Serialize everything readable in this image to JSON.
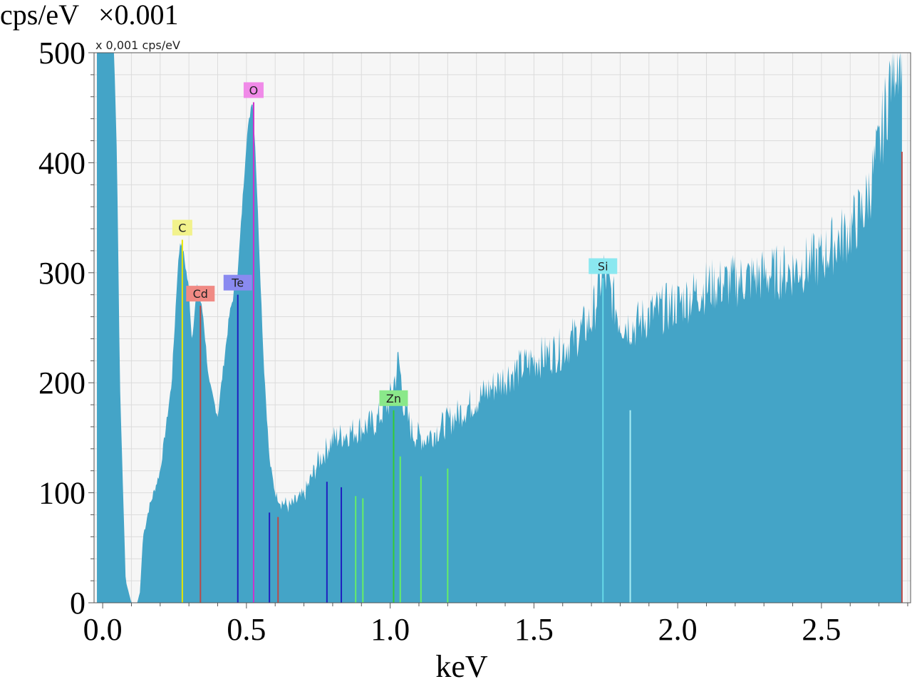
{
  "chart_data": {
    "type": "area",
    "title": "",
    "xlabel": "keV",
    "ylabel": "cps/eV",
    "ylabel_multiplier": "×0.001",
    "panel_note": "x 0,001 cps/eV",
    "xlim": [
      -0.03,
      2.81
    ],
    "ylim": [
      0,
      500
    ],
    "x_ticks": [
      "0.0",
      "0.5",
      "1.0",
      "1.5",
      "2.0",
      "2.5"
    ],
    "y_ticks": [
      "0",
      "100",
      "200",
      "300",
      "400",
      "500"
    ],
    "x_tick_values": [
      0.0,
      0.5,
      1.0,
      1.5,
      2.0,
      2.5
    ],
    "y_tick_values": [
      0,
      100,
      200,
      300,
      400,
      500
    ],
    "grid": true,
    "fill_color": "#44a4c7",
    "spectrum": {
      "x": [
        -0.02,
        0.0,
        0.04,
        0.05,
        0.06,
        0.08,
        0.1,
        0.12,
        0.13,
        0.14,
        0.16,
        0.2,
        0.24,
        0.26,
        0.27,
        0.28,
        0.3,
        0.31,
        0.33,
        0.35,
        0.37,
        0.4,
        0.44,
        0.47,
        0.5,
        0.52,
        0.53,
        0.56,
        0.58,
        0.6,
        0.62,
        0.65,
        0.7,
        0.75,
        0.8,
        0.85,
        0.9,
        0.95,
        1.0,
        1.03,
        1.05,
        1.08,
        1.12,
        1.2,
        1.3,
        1.4,
        1.5,
        1.6,
        1.7,
        1.74,
        1.76,
        1.8,
        1.85,
        1.9,
        2.0,
        2.1,
        2.2,
        2.3,
        2.4,
        2.5,
        2.55,
        2.6,
        2.65,
        2.7,
        2.75,
        2.78
      ],
      "y": [
        500,
        500,
        500,
        400,
        200,
        20,
        0,
        0,
        10,
        60,
        85,
        120,
        200,
        300,
        330,
        320,
        285,
        240,
        290,
        260,
        200,
        170,
        260,
        300,
        420,
        460,
        420,
        220,
        130,
        100,
        90,
        85,
        95,
        125,
        145,
        150,
        155,
        160,
        180,
        215,
        170,
        150,
        145,
        160,
        180,
        200,
        215,
        225,
        250,
        295,
        280,
        250,
        245,
        255,
        265,
        280,
        285,
        290,
        295,
        305,
        320,
        330,
        350,
        400,
        480,
        500
      ]
    },
    "peaks": [
      {
        "element": "C",
        "energy": 0.277,
        "height": 330,
        "label_color": "#f2f28c",
        "line_color": "#e6e600"
      },
      {
        "element": "Cd",
        "energy": 0.34,
        "height": 270,
        "label_color": "#f08a84",
        "line_color": "#b94a48"
      },
      {
        "element": "Te",
        "energy": 0.47,
        "height": 280,
        "label_color": "#8a8af0",
        "line_color": "#1f1fbf"
      },
      {
        "element": "O",
        "energy": 0.525,
        "height": 455,
        "label_color": "#f08ae8",
        "line_color": "#cc33cc"
      },
      {
        "element": "Zn",
        "energy": 1.012,
        "height": 175,
        "label_color": "#8ae88a",
        "line_color": "#33cc33"
      },
      {
        "element": "Si",
        "energy": 1.74,
        "height": 295,
        "label_color": "#8ae8f0",
        "line_color": "#66d9e8"
      }
    ],
    "marker_lines": [
      {
        "energy": 0.58,
        "height": 82,
        "color": "#1f1fbf"
      },
      {
        "energy": 0.61,
        "height": 78,
        "color": "#b94a48"
      },
      {
        "energy": 0.78,
        "height": 110,
        "color": "#1f1fbf"
      },
      {
        "energy": 0.83,
        "height": 105,
        "color": "#1f1fbf"
      },
      {
        "energy": 0.88,
        "height": 97,
        "color": "#66ee66"
      },
      {
        "energy": 0.905,
        "height": 95,
        "color": "#66ee66"
      },
      {
        "energy": 1.035,
        "height": 133,
        "color": "#66ee66"
      },
      {
        "energy": 1.107,
        "height": 115,
        "color": "#66ee66"
      },
      {
        "energy": 1.2,
        "height": 122,
        "color": "#66ee66"
      },
      {
        "energy": 1.835,
        "height": 175,
        "color": "#a8eef5"
      },
      {
        "energy": 2.78,
        "height": 410,
        "color": "#b94a48"
      }
    ]
  }
}
